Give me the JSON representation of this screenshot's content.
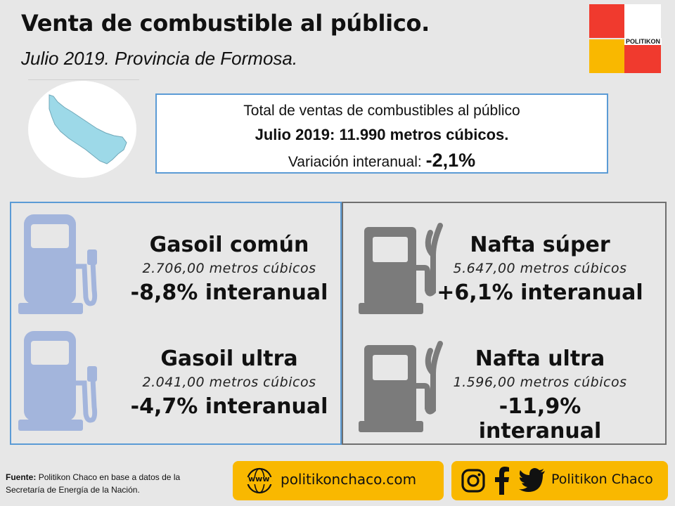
{
  "header": {
    "title": "Venta de combustible al público.",
    "subtitle": "Julio 2019. Provincia de Formosa."
  },
  "logo": {
    "text": "POLITIKON",
    "colors": {
      "red": "#f03a2e",
      "yellow": "#f9b800"
    }
  },
  "summary": {
    "line1": "Total de ventas de combustibles al público",
    "line2": "Julio 2019: 11.990 metros cúbicos.",
    "line3_label": "Variación interanual:",
    "line3_value": "-2,1%"
  },
  "fuels": [
    {
      "name": "Gasoil común",
      "volume": "2.706,00 metros cúbicos",
      "variation": "-8,8% interanual",
      "icon": "fuel-pump-icon"
    },
    {
      "name": "Gasoil ultra",
      "volume": "2.041,00 metros cúbicos",
      "variation": "-4,7% interanual",
      "icon": "fuel-pump-icon"
    },
    {
      "name": "Nafta súper",
      "volume": "5.647,00 metros cúbicos",
      "variation": "+6,1% interanual",
      "icon": "fuel-pump-icon"
    },
    {
      "name": "Nafta ultra",
      "volume": "1.596,00 metros cúbicos",
      "variation": "-11,9% interanual",
      "icon": "fuel-pump-icon"
    }
  ],
  "colors": {
    "gasoil_pump": "#a3b5dc",
    "nafta_pump": "#7b7b7b",
    "border_blue": "#5b9bd5",
    "border_gray": "#6f6f6f",
    "footer_yellow": "#f9b800",
    "map_fill": "#9dd9e8"
  },
  "footer": {
    "source_label": "Fuente:",
    "source_text": "Politikon Chaco en base a datos de la Secretaría de Energía de la Nación.",
    "web_icon_text": "www",
    "website": "politikonchaco.com",
    "social_name": "Politikon Chaco",
    "icons": [
      "instagram-icon",
      "facebook-icon",
      "twitter-icon"
    ]
  }
}
